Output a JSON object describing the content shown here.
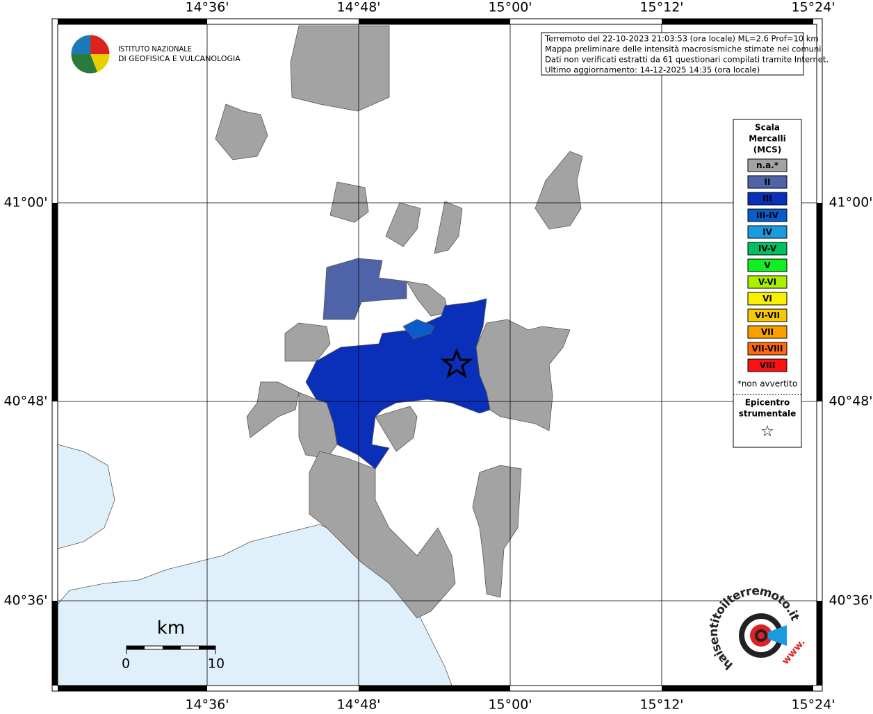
{
  "axes": {
    "longitude_labels": [
      "14°36'",
      "14°48'",
      "15°00'",
      "15°12'",
      "15°24'"
    ],
    "latitude_labels": [
      "41°00'",
      "40°48'",
      "40°36'"
    ]
  },
  "header": {
    "info_lines": [
      "Terremoto del 22-10-2023 21:03:53 (ora locale) ML=2.6 Prof=10 km",
      "Mappa preliminare delle intensità macrosismiche stimate nei comuni",
      "Dati non verificati estratti da 61 questionari compilati tramite Internet.",
      "Ultimo aggiornamento: 14-12-2025 14:35 (ora locale)"
    ]
  },
  "logo": {
    "lines": [
      "ISTITUTO NAZIONALE",
      "DI GEOFISICA E VULCANOLOGIA"
    ]
  },
  "legend": {
    "title_lines": [
      "Scala",
      "Mercalli",
      "(MCS)"
    ],
    "items": [
      {
        "label": "n.a.*",
        "color": "#a3a3a3"
      },
      {
        "label": "II",
        "color": "#4f64a8"
      },
      {
        "label": "III",
        "color": "#0a2fb8"
      },
      {
        "label": "III-IV",
        "color": "#0a5ccc"
      },
      {
        "label": "IV",
        "color": "#1a9be0"
      },
      {
        "label": "IV-V",
        "color": "#00c060"
      },
      {
        "label": "V",
        "color": "#11ee22"
      },
      {
        "label": "V-VI",
        "color": "#aaee00"
      },
      {
        "label": "VI",
        "color": "#f8f000"
      },
      {
        "label": "VI-VII",
        "color": "#f8c800"
      },
      {
        "label": "VII",
        "color": "#f8a000"
      },
      {
        "label": "VII-VIII",
        "color": "#ff6a10"
      },
      {
        "label": "VIII",
        "color": "#ff1111"
      }
    ],
    "note": "*non avvertito",
    "epicenter_lines": [
      "Epicentro",
      "strumentale"
    ],
    "epicenter_symbol": "☆"
  },
  "scale_bar": {
    "unit": "km",
    "labels": [
      "0",
      "10"
    ]
  },
  "site_logo": {
    "text": "haisentitoilterremoto.it",
    "prefix": "www."
  }
}
